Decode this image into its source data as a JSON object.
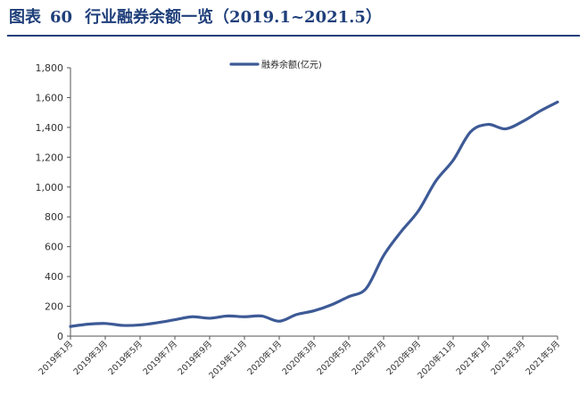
{
  "header": {
    "prefix": "图表",
    "number": "60",
    "text": "行业融券余额一览（2019.1~2021.5）"
  },
  "chart_data": {
    "type": "line",
    "title": "行业融券余额一览（2019.1~2021.5）",
    "xlabel": "",
    "ylabel": "",
    "ylim": [
      0,
      1800
    ],
    "yticks": [
      "0",
      "200",
      "400",
      "600",
      "800",
      "1,000",
      "1,200",
      "1,400",
      "1,600",
      "1,800"
    ],
    "x_tick_labels": [
      "2019年1月",
      "2019年3月",
      "2019年5月",
      "2019年7月",
      "2019年9月",
      "2019年11月",
      "2020年1月",
      "2020年3月",
      "2020年5月",
      "2020年7月",
      "2020年9月",
      "2020年11月",
      "2021年1月",
      "2021年3月",
      "2021年5月"
    ],
    "legend": "top-center",
    "grid": false,
    "series": [
      {
        "name": "融券余额(亿元)",
        "color": "#3d5a96",
        "x": [
          0,
          1,
          2,
          3,
          4,
          5,
          6,
          7,
          8,
          9,
          10,
          11,
          12,
          13,
          14,
          15,
          16,
          17,
          18,
          19,
          20,
          21,
          22,
          23,
          24,
          25,
          26,
          27,
          28
        ],
        "values": [
          65,
          80,
          85,
          72,
          75,
          90,
          110,
          130,
          120,
          135,
          130,
          135,
          100,
          145,
          170,
          210,
          265,
          320,
          540,
          700,
          840,
          1040,
          1180,
          1370,
          1420,
          1390,
          1440,
          1510,
          1570
        ]
      }
    ]
  }
}
